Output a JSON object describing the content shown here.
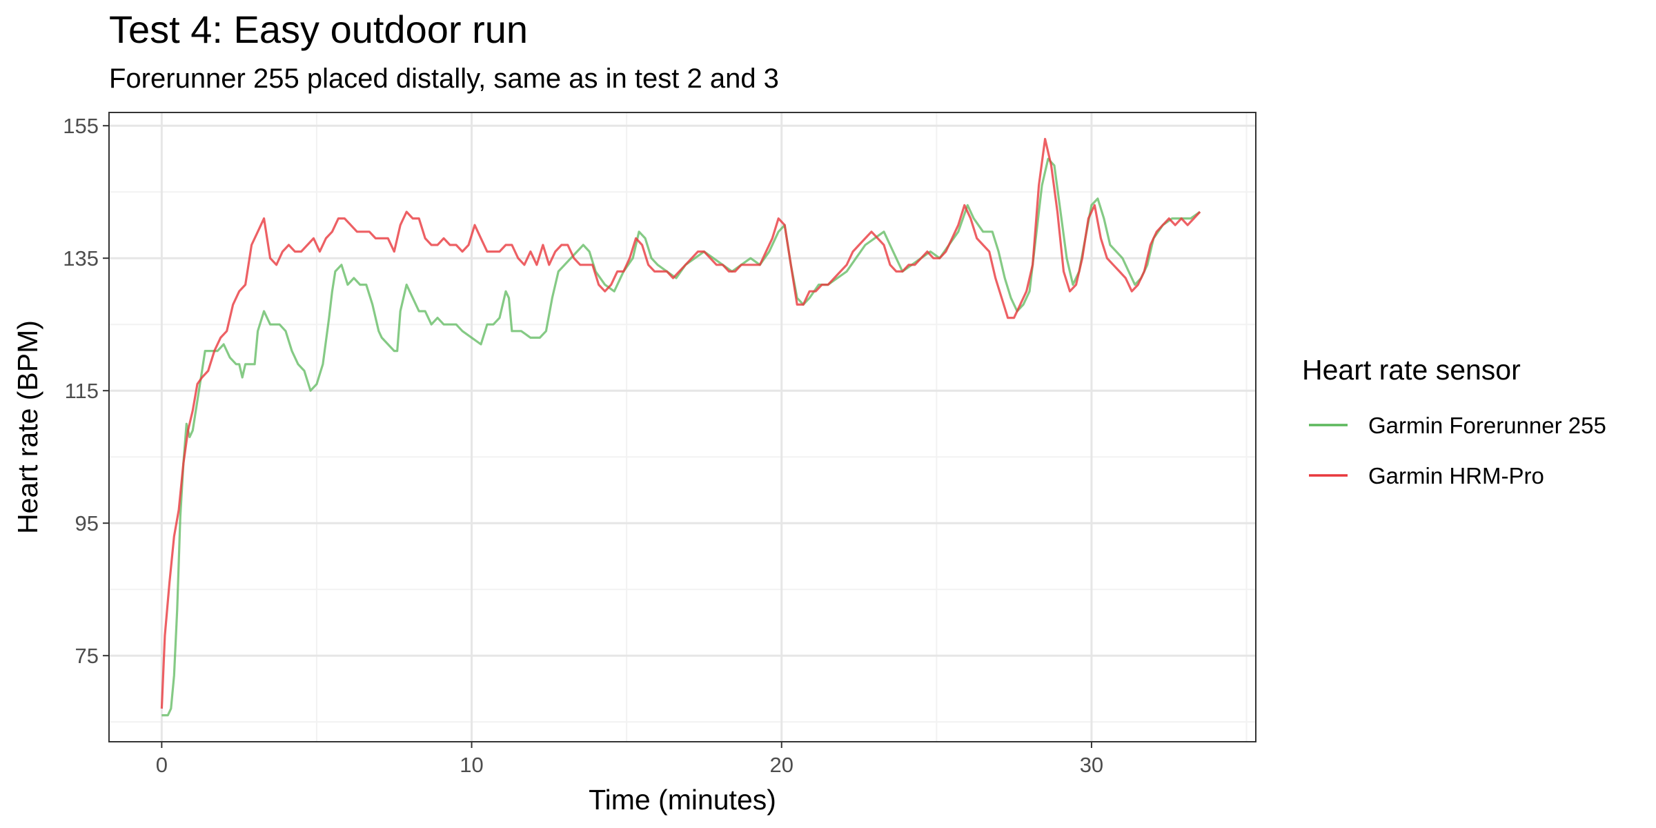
{
  "chart_data": {
    "type": "line",
    "title": "Test 4: Easy outdoor run",
    "subtitle": "Forerunner 255 placed distally, same as in test 2 and 3",
    "xlabel": "Time (minutes)",
    "ylabel": "Heart rate (BPM)",
    "xlim": [
      -1.7,
      35.3
    ],
    "ylim": [
      62,
      157
    ],
    "xticks": [
      0,
      10,
      20,
      30
    ],
    "yticks": [
      75,
      95,
      115,
      135,
      155
    ],
    "grid": true,
    "legend": {
      "title": "Heart rate sensor",
      "position": "right",
      "entries": [
        "Garmin Forerunner 255",
        "Garmin HRM-Pro"
      ]
    },
    "series": [
      {
        "name": "Garmin Forerunner 255",
        "color": "#5cb85c",
        "points": [
          [
            0,
            66
          ],
          [
            0.2,
            66
          ],
          [
            0.3,
            67
          ],
          [
            0.4,
            72
          ],
          [
            0.5,
            82
          ],
          [
            0.6,
            96
          ],
          [
            0.7,
            104
          ],
          [
            0.8,
            110
          ],
          [
            0.9,
            108
          ],
          [
            1.0,
            109
          ],
          [
            1.1,
            112
          ],
          [
            1.3,
            118
          ],
          [
            1.4,
            121
          ],
          [
            1.6,
            121
          ],
          [
            1.8,
            121
          ],
          [
            2.0,
            122
          ],
          [
            2.2,
            120
          ],
          [
            2.4,
            119
          ],
          [
            2.5,
            119
          ],
          [
            2.6,
            117
          ],
          [
            2.7,
            119
          ],
          [
            3.0,
            119
          ],
          [
            3.1,
            124
          ],
          [
            3.3,
            127
          ],
          [
            3.5,
            125
          ],
          [
            3.8,
            125
          ],
          [
            4.0,
            124
          ],
          [
            4.2,
            121
          ],
          [
            4.4,
            119
          ],
          [
            4.6,
            118
          ],
          [
            4.8,
            115
          ],
          [
            5.0,
            116
          ],
          [
            5.2,
            119
          ],
          [
            5.4,
            126
          ],
          [
            5.5,
            130
          ],
          [
            5.6,
            133
          ],
          [
            5.8,
            134
          ],
          [
            6.0,
            131
          ],
          [
            6.2,
            132
          ],
          [
            6.4,
            131
          ],
          [
            6.6,
            131
          ],
          [
            6.8,
            128
          ],
          [
            7.0,
            124
          ],
          [
            7.1,
            123
          ],
          [
            7.3,
            122
          ],
          [
            7.5,
            121
          ],
          [
            7.6,
            121
          ],
          [
            7.7,
            127
          ],
          [
            7.9,
            131
          ],
          [
            8.1,
            129
          ],
          [
            8.3,
            127
          ],
          [
            8.5,
            127
          ],
          [
            8.7,
            125
          ],
          [
            8.9,
            126
          ],
          [
            9.1,
            125
          ],
          [
            9.3,
            125
          ],
          [
            9.5,
            125
          ],
          [
            9.7,
            124
          ],
          [
            10.0,
            123
          ],
          [
            10.3,
            122
          ],
          [
            10.5,
            125
          ],
          [
            10.7,
            125
          ],
          [
            10.9,
            126
          ],
          [
            11.1,
            130
          ],
          [
            11.2,
            129
          ],
          [
            11.3,
            124
          ],
          [
            11.6,
            124
          ],
          [
            11.9,
            123
          ],
          [
            12.2,
            123
          ],
          [
            12.4,
            124
          ],
          [
            12.6,
            129
          ],
          [
            12.8,
            133
          ],
          [
            13.0,
            134
          ],
          [
            13.2,
            135
          ],
          [
            13.4,
            136
          ],
          [
            13.6,
            137
          ],
          [
            13.8,
            136
          ],
          [
            14.0,
            133
          ],
          [
            14.3,
            131
          ],
          [
            14.6,
            130
          ],
          [
            14.9,
            133
          ],
          [
            15.2,
            135
          ],
          [
            15.4,
            139
          ],
          [
            15.6,
            138
          ],
          [
            15.8,
            135
          ],
          [
            16.0,
            134
          ],
          [
            16.3,
            133
          ],
          [
            16.6,
            132
          ],
          [
            16.9,
            134
          ],
          [
            17.2,
            135
          ],
          [
            17.5,
            136
          ],
          [
            17.8,
            135
          ],
          [
            18.1,
            134
          ],
          [
            18.4,
            133
          ],
          [
            18.7,
            134
          ],
          [
            19.0,
            135
          ],
          [
            19.3,
            134
          ],
          [
            19.6,
            136
          ],
          [
            19.9,
            139
          ],
          [
            20.1,
            140
          ],
          [
            20.3,
            134
          ],
          [
            20.5,
            129
          ],
          [
            20.7,
            128
          ],
          [
            20.9,
            129
          ],
          [
            21.2,
            131
          ],
          [
            21.5,
            131
          ],
          [
            21.8,
            132
          ],
          [
            22.1,
            133
          ],
          [
            22.4,
            135
          ],
          [
            22.7,
            137
          ],
          [
            23.0,
            138
          ],
          [
            23.3,
            139
          ],
          [
            23.6,
            136
          ],
          [
            23.9,
            133
          ],
          [
            24.2,
            134
          ],
          [
            24.5,
            135
          ],
          [
            24.8,
            136
          ],
          [
            25.1,
            135
          ],
          [
            25.4,
            137
          ],
          [
            25.7,
            139
          ],
          [
            26.0,
            143
          ],
          [
            26.2,
            141
          ],
          [
            26.5,
            139
          ],
          [
            26.8,
            139
          ],
          [
            27.0,
            136
          ],
          [
            27.2,
            132
          ],
          [
            27.4,
            129
          ],
          [
            27.6,
            127
          ],
          [
            27.8,
            128
          ],
          [
            28.0,
            130
          ],
          [
            28.2,
            138
          ],
          [
            28.4,
            146
          ],
          [
            28.6,
            150
          ],
          [
            28.8,
            149
          ],
          [
            29.0,
            142
          ],
          [
            29.2,
            135
          ],
          [
            29.4,
            131
          ],
          [
            29.6,
            133
          ],
          [
            29.8,
            138
          ],
          [
            30.0,
            143
          ],
          [
            30.2,
            144
          ],
          [
            30.4,
            141
          ],
          [
            30.6,
            137
          ],
          [
            30.8,
            136
          ],
          [
            31.0,
            135
          ],
          [
            31.2,
            133
          ],
          [
            31.4,
            131
          ],
          [
            31.6,
            132
          ],
          [
            31.8,
            134
          ],
          [
            32.0,
            138
          ],
          [
            32.3,
            140
          ],
          [
            32.6,
            141
          ],
          [
            32.9,
            141
          ],
          [
            33.2,
            141
          ],
          [
            33.5,
            142
          ]
        ]
      },
      {
        "name": "Garmin HRM-Pro",
        "color": "#e8383d",
        "points": [
          [
            0,
            67
          ],
          [
            0.1,
            78
          ],
          [
            0.25,
            86
          ],
          [
            0.4,
            93
          ],
          [
            0.55,
            97
          ],
          [
            0.7,
            104
          ],
          [
            0.85,
            109
          ],
          [
            1.0,
            112
          ],
          [
            1.15,
            116
          ],
          [
            1.3,
            117
          ],
          [
            1.5,
            118
          ],
          [
            1.7,
            121
          ],
          [
            1.9,
            123
          ],
          [
            2.1,
            124
          ],
          [
            2.3,
            128
          ],
          [
            2.5,
            130
          ],
          [
            2.7,
            131
          ],
          [
            2.9,
            137
          ],
          [
            3.1,
            139
          ],
          [
            3.3,
            141
          ],
          [
            3.5,
            135
          ],
          [
            3.7,
            134
          ],
          [
            3.9,
            136
          ],
          [
            4.1,
            137
          ],
          [
            4.3,
            136
          ],
          [
            4.5,
            136
          ],
          [
            4.7,
            137
          ],
          [
            4.9,
            138
          ],
          [
            5.1,
            136
          ],
          [
            5.3,
            138
          ],
          [
            5.5,
            139
          ],
          [
            5.7,
            141
          ],
          [
            5.9,
            141
          ],
          [
            6.1,
            140
          ],
          [
            6.3,
            139
          ],
          [
            6.5,
            139
          ],
          [
            6.7,
            139
          ],
          [
            6.9,
            138
          ],
          [
            7.1,
            138
          ],
          [
            7.3,
            138
          ],
          [
            7.5,
            136
          ],
          [
            7.7,
            140
          ],
          [
            7.9,
            142
          ],
          [
            8.1,
            141
          ],
          [
            8.3,
            141
          ],
          [
            8.5,
            138
          ],
          [
            8.7,
            137
          ],
          [
            8.9,
            137
          ],
          [
            9.1,
            138
          ],
          [
            9.3,
            137
          ],
          [
            9.5,
            137
          ],
          [
            9.7,
            136
          ],
          [
            9.9,
            137
          ],
          [
            10.1,
            140
          ],
          [
            10.3,
            138
          ],
          [
            10.5,
            136
          ],
          [
            10.7,
            136
          ],
          [
            10.9,
            136
          ],
          [
            11.1,
            137
          ],
          [
            11.3,
            137
          ],
          [
            11.5,
            135
          ],
          [
            11.7,
            134
          ],
          [
            11.9,
            136
          ],
          [
            12.1,
            134
          ],
          [
            12.3,
            137
          ],
          [
            12.5,
            134
          ],
          [
            12.7,
            136
          ],
          [
            12.9,
            137
          ],
          [
            13.1,
            137
          ],
          [
            13.3,
            135
          ],
          [
            13.5,
            134
          ],
          [
            13.7,
            134
          ],
          [
            13.9,
            134
          ],
          [
            14.1,
            131
          ],
          [
            14.3,
            130
          ],
          [
            14.5,
            131
          ],
          [
            14.7,
            133
          ],
          [
            14.9,
            133
          ],
          [
            15.1,
            135
          ],
          [
            15.3,
            138
          ],
          [
            15.5,
            137
          ],
          [
            15.7,
            134
          ],
          [
            15.9,
            133
          ],
          [
            16.1,
            133
          ],
          [
            16.3,
            133
          ],
          [
            16.5,
            132
          ],
          [
            16.7,
            133
          ],
          [
            16.9,
            134
          ],
          [
            17.1,
            135
          ],
          [
            17.3,
            136
          ],
          [
            17.5,
            136
          ],
          [
            17.7,
            135
          ],
          [
            17.9,
            134
          ],
          [
            18.1,
            134
          ],
          [
            18.3,
            133
          ],
          [
            18.5,
            133
          ],
          [
            18.7,
            134
          ],
          [
            18.9,
            134
          ],
          [
            19.1,
            134
          ],
          [
            19.3,
            134
          ],
          [
            19.5,
            136
          ],
          [
            19.7,
            138
          ],
          [
            19.9,
            141
          ],
          [
            20.1,
            140
          ],
          [
            20.3,
            134
          ],
          [
            20.5,
            128
          ],
          [
            20.7,
            128
          ],
          [
            20.9,
            130
          ],
          [
            21.1,
            130
          ],
          [
            21.3,
            131
          ],
          [
            21.5,
            131
          ],
          [
            21.7,
            132
          ],
          [
            21.9,
            133
          ],
          [
            22.1,
            134
          ],
          [
            22.3,
            136
          ],
          [
            22.5,
            137
          ],
          [
            22.7,
            138
          ],
          [
            22.9,
            139
          ],
          [
            23.1,
            138
          ],
          [
            23.3,
            137
          ],
          [
            23.5,
            134
          ],
          [
            23.7,
            133
          ],
          [
            23.9,
            133
          ],
          [
            24.1,
            134
          ],
          [
            24.3,
            134
          ],
          [
            24.5,
            135
          ],
          [
            24.7,
            136
          ],
          [
            24.9,
            135
          ],
          [
            25.1,
            135
          ],
          [
            25.3,
            136
          ],
          [
            25.5,
            138
          ],
          [
            25.7,
            140
          ],
          [
            25.9,
            143
          ],
          [
            26.1,
            141
          ],
          [
            26.3,
            138
          ],
          [
            26.5,
            137
          ],
          [
            26.7,
            136
          ],
          [
            26.9,
            132
          ],
          [
            27.1,
            129
          ],
          [
            27.3,
            126
          ],
          [
            27.5,
            126
          ],
          [
            27.7,
            128
          ],
          [
            27.9,
            130
          ],
          [
            28.1,
            134
          ],
          [
            28.3,
            146
          ],
          [
            28.5,
            153
          ],
          [
            28.7,
            149
          ],
          [
            28.9,
            142
          ],
          [
            29.1,
            133
          ],
          [
            29.3,
            130
          ],
          [
            29.5,
            131
          ],
          [
            29.7,
            135
          ],
          [
            29.9,
            141
          ],
          [
            30.1,
            143
          ],
          [
            30.3,
            138
          ],
          [
            30.5,
            135
          ],
          [
            30.7,
            134
          ],
          [
            30.9,
            133
          ],
          [
            31.1,
            132
          ],
          [
            31.3,
            130
          ],
          [
            31.5,
            131
          ],
          [
            31.7,
            133
          ],
          [
            31.9,
            137
          ],
          [
            32.1,
            139
          ],
          [
            32.3,
            140
          ],
          [
            32.5,
            141
          ],
          [
            32.7,
            140
          ],
          [
            32.9,
            141
          ],
          [
            33.1,
            140
          ],
          [
            33.3,
            141
          ],
          [
            33.5,
            142
          ]
        ]
      }
    ]
  }
}
